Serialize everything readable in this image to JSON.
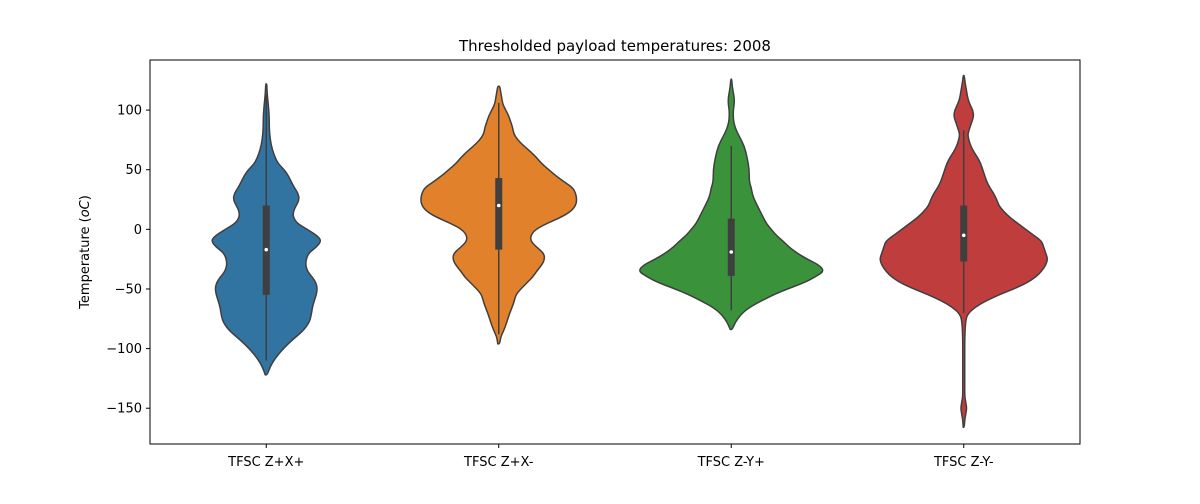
{
  "chart_data": {
    "type": "violin",
    "title": "Thresholded payload temperatures: 2008",
    "xlabel": "",
    "ylabel": "Temperature (",
    "ylabel_unit": "oC",
    "ylabel_close": ")",
    "ylim": [
      -180,
      142
    ],
    "yticks": [
      100,
      50,
      0,
      -50,
      -100,
      -150
    ],
    "grid": false,
    "legend": "none",
    "categories": [
      "TFSC Z+X+",
      "TFSC Z+X-",
      "TFSC Z-Y+",
      "TFSC Z-Y-"
    ],
    "series": [
      {
        "category": "TFSC Z+X+",
        "color": "#3274a1",
        "median": -17,
        "q1": -55,
        "q3": 20,
        "whisker_low": -110,
        "whisker_high": 113,
        "density": [
          [
            -122,
            1
          ],
          [
            -115,
            4
          ],
          [
            -108,
            9
          ],
          [
            -100,
            17
          ],
          [
            -92,
            27
          ],
          [
            -85,
            37
          ],
          [
            -78,
            43
          ],
          [
            -72,
            45
          ],
          [
            -66,
            46
          ],
          [
            -60,
            48
          ],
          [
            -55,
            50
          ],
          [
            -50,
            51
          ],
          [
            -45,
            50
          ],
          [
            -40,
            46
          ],
          [
            -35,
            41
          ],
          [
            -28,
            39
          ],
          [
            -20,
            42
          ],
          [
            -15,
            50
          ],
          [
            -10,
            55
          ],
          [
            -6,
            52
          ],
          [
            0,
            41
          ],
          [
            5,
            31
          ],
          [
            10,
            27
          ],
          [
            15,
            27
          ],
          [
            20,
            30
          ],
          [
            25,
            33
          ],
          [
            30,
            32
          ],
          [
            35,
            28
          ],
          [
            40,
            25
          ],
          [
            45,
            22
          ],
          [
            50,
            18
          ],
          [
            55,
            12
          ],
          [
            60,
            9
          ],
          [
            67,
            6
          ],
          [
            75,
            4
          ],
          [
            85,
            3
          ],
          [
            95,
            3
          ],
          [
            105,
            2
          ],
          [
            113,
            1
          ],
          [
            122,
            0.5
          ]
        ]
      },
      {
        "category": "TFSC Z+X-",
        "color": "#e1812c",
        "median": 20,
        "q1": -17,
        "q3": 43,
        "whisker_low": -88,
        "whisker_high": 106,
        "density": [
          [
            -96,
            1
          ],
          [
            -90,
            2
          ],
          [
            -85,
            5
          ],
          [
            -78,
            8
          ],
          [
            -70,
            11
          ],
          [
            -62,
            15
          ],
          [
            -55,
            17
          ],
          [
            -50,
            22
          ],
          [
            -45,
            28
          ],
          [
            -40,
            34
          ],
          [
            -35,
            38
          ],
          [
            -30,
            43
          ],
          [
            -25,
            46
          ],
          [
            -20,
            45
          ],
          [
            -15,
            38
          ],
          [
            -10,
            32
          ],
          [
            -5,
            32
          ],
          [
            0,
            37
          ],
          [
            5,
            48
          ],
          [
            10,
            62
          ],
          [
            15,
            72
          ],
          [
            20,
            77
          ],
          [
            25,
            78
          ],
          [
            30,
            77
          ],
          [
            35,
            74
          ],
          [
            40,
            65
          ],
          [
            45,
            57
          ],
          [
            50,
            50
          ],
          [
            55,
            43
          ],
          [
            60,
            38
          ],
          [
            65,
            32
          ],
          [
            70,
            25
          ],
          [
            75,
            19
          ],
          [
            80,
            15
          ],
          [
            85,
            14
          ],
          [
            90,
            12
          ],
          [
            95,
            10
          ],
          [
            100,
            7
          ],
          [
            105,
            4
          ],
          [
            110,
            3
          ],
          [
            115,
            2
          ],
          [
            120,
            1
          ]
        ]
      },
      {
        "category": "TFSC Z-Y+",
        "color": "#3a923a",
        "median": -19,
        "q1": -39,
        "q3": 9,
        "whisker_low": -68,
        "whisker_high": 70,
        "density": [
          [
            -84,
            1
          ],
          [
            -78,
            4
          ],
          [
            -72,
            9
          ],
          [
            -66,
            17
          ],
          [
            -60,
            30
          ],
          [
            -55,
            42
          ],
          [
            -50,
            56
          ],
          [
            -45,
            72
          ],
          [
            -40,
            84
          ],
          [
            -35,
            93
          ],
          [
            -30,
            88
          ],
          [
            -25,
            76
          ],
          [
            -20,
            66
          ],
          [
            -15,
            58
          ],
          [
            -10,
            52
          ],
          [
            -5,
            45
          ],
          [
            0,
            40
          ],
          [
            5,
            35
          ],
          [
            10,
            32
          ],
          [
            15,
            29
          ],
          [
            20,
            26
          ],
          [
            25,
            23
          ],
          [
            30,
            21
          ],
          [
            35,
            20
          ],
          [
            40,
            18
          ],
          [
            50,
            18
          ],
          [
            60,
            16
          ],
          [
            70,
            13
          ],
          [
            78,
            8
          ],
          [
            83,
            5
          ],
          [
            88,
            3
          ],
          [
            93,
            2
          ],
          [
            100,
            2
          ],
          [
            105,
            3
          ],
          [
            110,
            3
          ],
          [
            115,
            2
          ],
          [
            120,
            1
          ],
          [
            126,
            0.5
          ]
        ]
      },
      {
        "category": "TFSC Z-Y-",
        "color": "#c03d3e",
        "median": -5,
        "q1": -27,
        "q3": 20,
        "whisker_low": -70,
        "whisker_high": 83,
        "density": [
          [
            -166,
            0.5
          ],
          [
            -160,
            1
          ],
          [
            -155,
            2
          ],
          [
            -150,
            3
          ],
          [
            -145,
            2
          ],
          [
            -140,
            1
          ],
          [
            -130,
            1
          ],
          [
            -110,
            1
          ],
          [
            -90,
            1
          ],
          [
            -75,
            2
          ],
          [
            -70,
            5
          ],
          [
            -65,
            12
          ],
          [
            -60,
            22
          ],
          [
            -55,
            35
          ],
          [
            -50,
            50
          ],
          [
            -45,
            63
          ],
          [
            -40,
            72
          ],
          [
            -35,
            78
          ],
          [
            -30,
            82
          ],
          [
            -25,
            84
          ],
          [
            -20,
            82
          ],
          [
            -15,
            80
          ],
          [
            -10,
            78
          ],
          [
            -5,
            70
          ],
          [
            0,
            62
          ],
          [
            5,
            54
          ],
          [
            10,
            46
          ],
          [
            15,
            40
          ],
          [
            20,
            35
          ],
          [
            25,
            33
          ],
          [
            30,
            30
          ],
          [
            35,
            26
          ],
          [
            40,
            23
          ],
          [
            45,
            21
          ],
          [
            50,
            19
          ],
          [
            55,
            17
          ],
          [
            60,
            14
          ],
          [
            65,
            10
          ],
          [
            70,
            7
          ],
          [
            75,
            5
          ],
          [
            80,
            4
          ],
          [
            85,
            6
          ],
          [
            90,
            8
          ],
          [
            95,
            10
          ],
          [
            100,
            9
          ],
          [
            105,
            6
          ],
          [
            110,
            4
          ],
          [
            115,
            3
          ],
          [
            120,
            2
          ],
          [
            125,
            1
          ],
          [
            129,
            0.5
          ]
        ]
      }
    ]
  }
}
